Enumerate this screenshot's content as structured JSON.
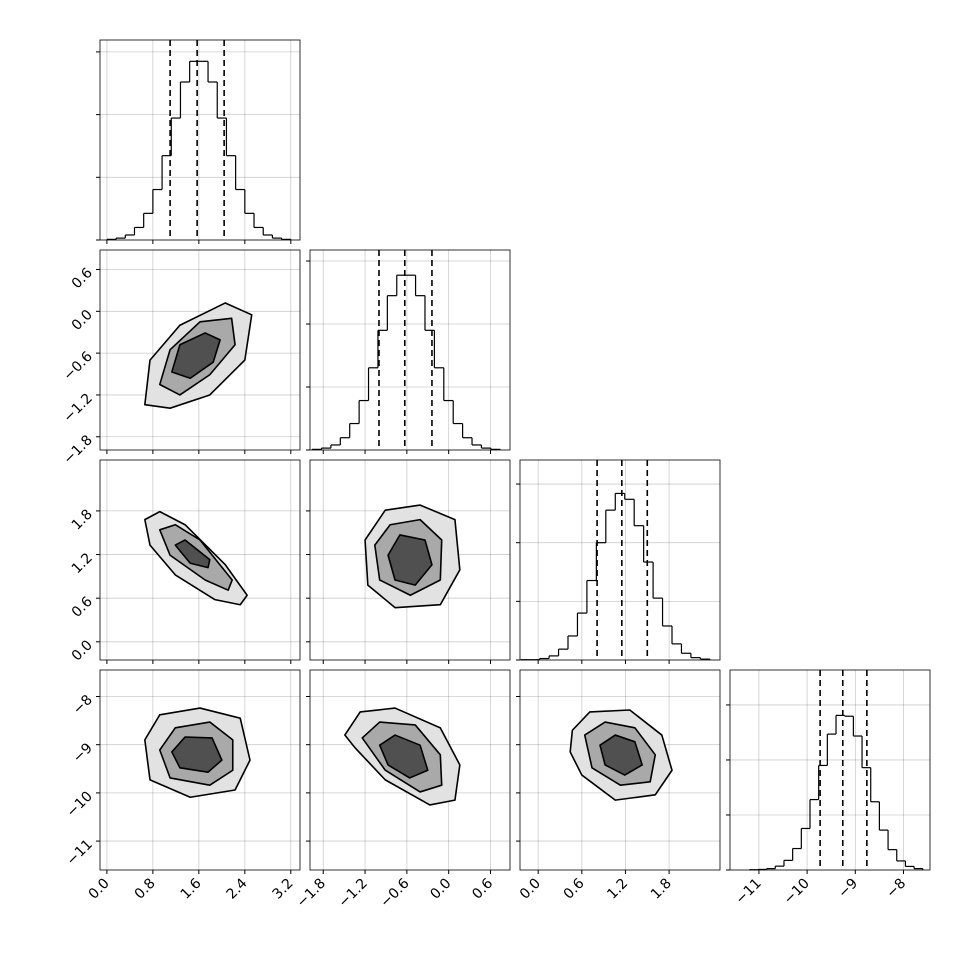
{
  "chart_data": {
    "type": "corner",
    "parameters": [
      {
        "lim": [
          -0.12,
          3.36
        ],
        "ticks": [
          {
            "value": 0,
            "label": "0.0"
          },
          0.8,
          1.6,
          2.4,
          3.2
        ]
      },
      {
        "lim": [
          -1.99,
          0.88
        ],
        "ticks": [
          {
            "value": -1.8,
            "label": "−1.8"
          },
          {
            "value": -1.2,
            "label": "−1.2"
          },
          {
            "value": -0.6,
            "label": "−0.6"
          },
          {
            "value": 0,
            "label": "0.0"
          },
          0.6
        ]
      },
      {
        "lim": [
          -0.25,
          2.5
        ],
        "ticks": [
          {
            "value": 0,
            "label": "0.0"
          },
          0.6,
          1.2,
          1.8
        ]
      },
      {
        "lim": [
          -11.6,
          -7.45
        ],
        "ticks": [
          {
            "value": -11,
            "label": "−11"
          },
          {
            "value": -10,
            "label": "−10"
          },
          {
            "value": -9,
            "label": "−9"
          },
          {
            "value": -8,
            "label": "−8"
          }
        ]
      }
    ],
    "histograms": [
      {
        "bins": [
          0,
          0.16,
          0.32,
          0.48,
          0.64,
          0.8,
          0.96,
          1.12,
          1.28,
          1.44,
          1.6,
          1.76,
          1.92,
          2.08,
          2.24,
          2.4,
          2.56,
          2.72,
          2.88,
          3.04,
          3.2
        ],
        "counts": [
          2,
          6,
          16,
          40,
          85,
          161,
          269,
          389,
          504,
          570,
          570,
          504,
          389,
          269,
          161,
          85,
          40,
          16,
          6,
          2
        ],
        "quantiles": [
          1.1,
          1.57,
          2.04
        ],
        "ylim": [
          0,
          638
        ],
        "yticks": [
          0,
          200,
          400,
          600
        ]
      },
      {
        "bins": [
          -1.96,
          -1.825,
          -1.69,
          -1.555,
          -1.42,
          -1.285,
          -1.15,
          -1.015,
          -0.88,
          -0.745,
          -0.61,
          -0.475,
          -0.34,
          -0.205,
          -0.07,
          0.065,
          0.2,
          0.335,
          0.47,
          0.605,
          0.74
        ],
        "counts": [
          2,
          6,
          16,
          39,
          84,
          157,
          261,
          380,
          490,
          555,
          555,
          490,
          380,
          261,
          157,
          84,
          39,
          16,
          6,
          2
        ],
        "quantiles": [
          -1.0,
          -0.63,
          -0.24
        ],
        "ylim": [
          0,
          635
        ],
        "yticks": [
          0,
          200,
          400,
          600
        ]
      },
      {
        "bins": [
          -0.24,
          -0.11,
          0.02,
          0.15,
          0.28,
          0.41,
          0.54,
          0.67,
          0.8,
          0.93,
          1.06,
          1.19,
          1.32,
          1.45,
          1.58,
          1.71,
          1.84,
          1.97,
          2.1,
          2.23,
          2.36
        ],
        "counts": [
          1,
          1,
          5,
          14,
          37,
          82,
          160,
          271,
          400,
          511,
          568,
          548,
          458,
          334,
          211,
          116,
          55,
          23,
          8,
          3
        ],
        "quantiles": [
          0.81,
          1.15,
          1.5
        ],
        "ylim": [
          0,
          682
        ],
        "yticks": [
          0,
          200,
          400,
          600
        ]
      },
      {
        "bins": [
          -11.2,
          -11.02,
          -10.84,
          -10.66,
          -10.48,
          -10.3,
          -10.12,
          -9.94,
          -9.76,
          -9.58,
          -9.4,
          -9.22,
          -9.04,
          -8.86,
          -8.68,
          -8.5,
          -8.32,
          -8.14,
          -7.96,
          -7.78,
          -7.6
        ],
        "counts": [
          1,
          2,
          5,
          14,
          35,
          78,
          151,
          256,
          380,
          494,
          562,
          559,
          487,
          372,
          248,
          145,
          74,
          33,
          13,
          5
        ],
        "quantiles": [
          -9.73,
          -9.26,
          -8.76
        ],
        "ylim": [
          0,
          727
        ],
        "yticks": [
          0,
          200,
          400,
          600
        ]
      }
    ],
    "contour_fills": [
      "#e2e2e2",
      "#a9a9a9",
      "#505050"
    ],
    "pairs": [
      [
        {
          "contours": [
            {
              "x": [
                0.66,
                0.75,
                1.27,
                2.06,
                2.52,
                2.4,
                1.79,
                1.1
              ],
              "y": [
                -1.34,
                -0.7,
                -0.2,
                0.12,
                -0.05,
                -0.7,
                -1.2,
                -1.39
              ]
            },
            {
              "x": [
                0.92,
                1.1,
                1.62,
                2.17,
                2.23,
                1.79,
                1.27
              ],
              "y": [
                -1.05,
                -0.55,
                -0.15,
                -0.1,
                -0.48,
                -0.91,
                -1.2
              ]
            },
            {
              "x": [
                1.13,
                1.27,
                1.71,
                1.97,
                1.85,
                1.45
              ],
              "y": [
                -0.87,
                -0.48,
                -0.31,
                -0.41,
                -0.73,
                -0.96
              ]
            }
          ]
        }
      ],
      [
        {
          "contours": [
            {
              "x": [
                0.66,
                0.92,
                1.36,
                2.06,
                2.44,
                2.32,
                1.88,
                1.19,
                0.75
              ],
              "y": [
                1.68,
                1.79,
                1.61,
                1.06,
                0.64,
                0.51,
                0.58,
                0.92,
                1.33
              ]
            },
            {
              "x": [
                0.92,
                1.19,
                1.62,
                2.18,
                2.11,
                1.71,
                1.1
              ],
              "y": [
                1.54,
                1.61,
                1.4,
                0.85,
                0.71,
                0.85,
                1.19
              ]
            },
            {
              "x": [
                1.19,
                1.36,
                1.79,
                1.76,
                1.45
              ],
              "y": [
                1.33,
                1.4,
                1.13,
                1.02,
                1.08
              ]
            }
          ]
        },
        {
          "contours": [
            {
              "x": [
                -1.2,
                -0.91,
                -0.41,
                0.09,
                0.16,
                -0.12,
                -0.77,
                -1.16
              ],
              "y": [
                1.4,
                1.81,
                1.88,
                1.68,
                0.99,
                0.51,
                0.47,
                0.78
              ]
            },
            {
              "x": [
                -1.06,
                -0.84,
                -0.41,
                -0.1,
                -0.12,
                -0.55,
                -0.99
              ],
              "y": [
                1.33,
                1.61,
                1.68,
                1.4,
                0.85,
                0.64,
                0.85
              ]
            },
            {
              "x": [
                -0.87,
                -0.7,
                -0.34,
                -0.24,
                -0.48,
                -0.77
              ],
              "y": [
                1.19,
                1.47,
                1.4,
                1.06,
                0.78,
                0.85
              ]
            }
          ]
        }
      ],
      [
        {
          "contours": [
            {
              "x": [
                0.66,
                0.92,
                1.62,
                2.32,
                2.49,
                2.23,
                1.45,
                0.75
              ],
              "y": [
                -8.9,
                -8.38,
                -8.24,
                -8.45,
                -9.32,
                -9.94,
                -10.09,
                -9.73
              ]
            },
            {
              "x": [
                0.92,
                1.19,
                1.79,
                2.19,
                2.19,
                1.79,
                1.1
              ],
              "y": [
                -9.11,
                -8.65,
                -8.53,
                -8.9,
                -9.53,
                -9.84,
                -9.69
              ]
            },
            {
              "x": [
                1.13,
                1.36,
                1.83,
                2.0,
                1.76,
                1.27
              ],
              "y": [
                -9.15,
                -8.84,
                -8.86,
                -9.32,
                -9.57,
                -9.48
              ]
            }
          ]
        },
        {
          "contours": [
            {
              "x": [
                -1.49,
                -1.27,
                -0.77,
                -0.12,
                0.16,
                0.09,
                -0.27,
                -0.91,
                -1.34
              ],
              "y": [
                -8.8,
                -8.32,
                -8.24,
                -8.65,
                -9.42,
                -10.15,
                -10.25,
                -9.73,
                -9.07
              ]
            },
            {
              "x": [
                -1.24,
                -0.99,
                -0.48,
                -0.12,
                -0.1,
                -0.41,
                -0.91
              ],
              "y": [
                -8.86,
                -8.53,
                -8.59,
                -9.21,
                -9.84,
                -9.98,
                -9.53
              ]
            },
            {
              "x": [
                -0.99,
                -0.77,
                -0.41,
                -0.3,
                -0.56,
                -0.87
              ],
              "y": [
                -9.01,
                -8.8,
                -9.01,
                -9.53,
                -9.69,
                -9.42
              ]
            }
          ]
        },
        {
          "contours": [
            {
              "x": [
                0.47,
                0.71,
                1.26,
                1.7,
                1.84,
                1.61,
                1.06,
                0.6,
                0.44
              ],
              "y": [
                -8.7,
                -8.32,
                -8.28,
                -8.8,
                -9.53,
                -10.04,
                -10.15,
                -9.63,
                -9.15
              ]
            },
            {
              "x": [
                0.64,
                0.92,
                1.33,
                1.61,
                1.54,
                1.13,
                0.74
              ],
              "y": [
                -8.8,
                -8.53,
                -8.65,
                -9.21,
                -9.77,
                -9.84,
                -9.48
              ]
            },
            {
              "x": [
                0.85,
                1.06,
                1.33,
                1.43,
                1.19,
                0.92
              ],
              "y": [
                -9.01,
                -8.8,
                -8.94,
                -9.42,
                -9.63,
                -9.42
              ]
            }
          ]
        }
      ]
    ],
    "grid": true
  }
}
